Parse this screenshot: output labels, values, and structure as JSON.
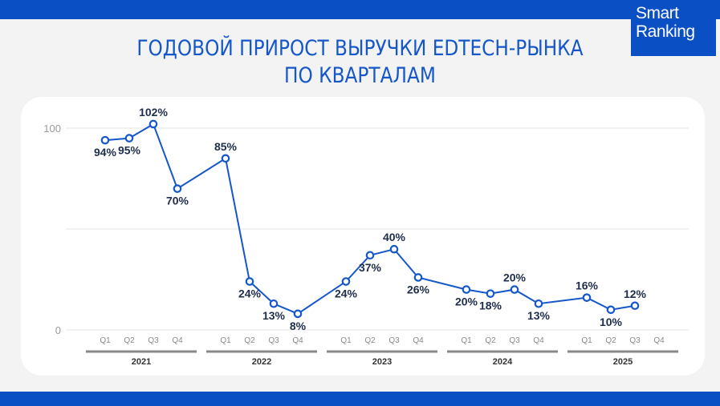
{
  "brand": {
    "line1": "Smart",
    "line2": "Ranking"
  },
  "colors": {
    "accent": "#0b4fc4",
    "series": "#1557c9",
    "label": "#1f2d4d"
  },
  "chart_data": {
    "type": "line",
    "title": "ГОДОВОЙ ПРИРОСТ ВЫРУЧКИ EDTECH-РЫНКА",
    "subtitle": "ПО КВАРТАЛАМ",
    "xlabel": "",
    "ylabel": "",
    "ylim": [
      0,
      100
    ],
    "yticks": [
      0,
      100
    ],
    "grid": true,
    "legend": "none",
    "groups": [
      {
        "year": "2021",
        "quarters": [
          "Q1",
          "Q2",
          "Q3",
          "Q4"
        ]
      },
      {
        "year": "2022",
        "quarters": [
          "Q1",
          "Q2",
          "Q3",
          "Q4"
        ]
      },
      {
        "year": "2023",
        "quarters": [
          "Q1",
          "Q2",
          "Q3",
          "Q4"
        ]
      },
      {
        "year": "2024",
        "quarters": [
          "Q1",
          "Q2",
          "Q3",
          "Q4"
        ]
      },
      {
        "year": "2025",
        "quarters": [
          "Q1",
          "Q2",
          "Q3",
          "Q4"
        ]
      }
    ],
    "series": [
      {
        "values": [
          94,
          95,
          102,
          70,
          85,
          24,
          13,
          8,
          24,
          37,
          40,
          26,
          20,
          18,
          20,
          13,
          16,
          10,
          12,
          null
        ],
        "labels": [
          "94%",
          "95%",
          "102%",
          "70%",
          "85%",
          "24%",
          "13%",
          "8%",
          "24%",
          "37%",
          "40%",
          "26%",
          "20%",
          "18%",
          "20%",
          "13%",
          "16%",
          "10%",
          "12%",
          null
        ]
      }
    ]
  }
}
